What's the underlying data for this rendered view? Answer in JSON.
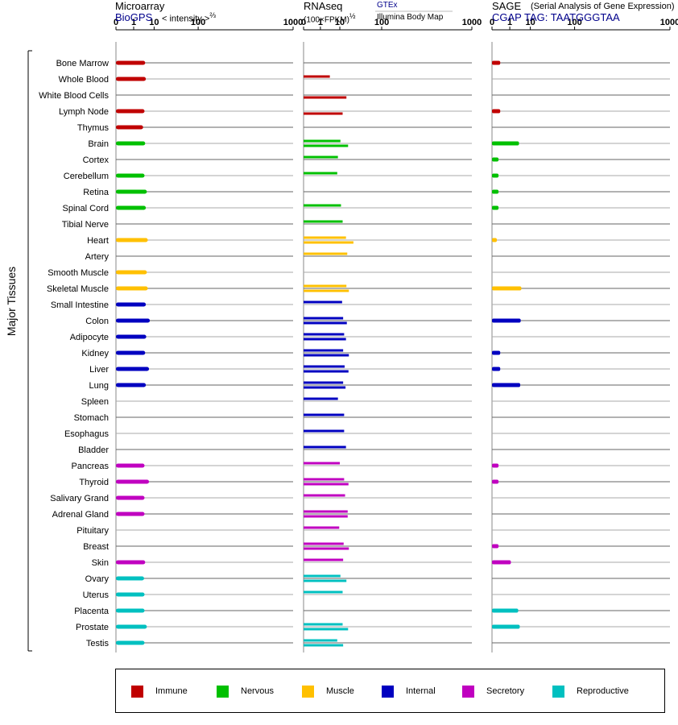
{
  "headers": {
    "microarray": {
      "title": "Microarray",
      "source": "BioGPS",
      "unit": "< intensity >",
      "unit_exp": "⅔"
    },
    "rnaseq": {
      "title": "RNAseq",
      "unit": "(100×FPKM)",
      "unit_exp": "½",
      "source_top": "GTEx",
      "source_bottom": "Illumina Body Map"
    },
    "sage": {
      "title": "SAGE",
      "subtitle": "(Serial Analysis of Gene Expression)",
      "tag": "CGAP TAG: TAATGGGTAA"
    }
  },
  "y_group_label": "Major Tissues",
  "legend": [
    {
      "label": "Immune",
      "color": "#c00000"
    },
    {
      "label": "Nervous",
      "color": "#00c000"
    },
    {
      "label": "Muscle",
      "color": "#ffc000"
    },
    {
      "label": "Internal",
      "color": "#0000c0"
    },
    {
      "label": "Secretory",
      "color": "#c000c0"
    },
    {
      "label": "Reproductive",
      "color": "#00c0c0"
    }
  ],
  "chart_data": {
    "type": "bar",
    "x_scale": "power",
    "x_ticks": [
      "0",
      "1",
      "10",
      "100",
      "1000"
    ],
    "xlim": [
      0,
      1000
    ],
    "categories": [
      "Bone Marrow",
      "Whole Blood",
      "White Blood Cells",
      "Lymph Node",
      "Thymus",
      "Brain",
      "Cortex",
      "Cerebellum",
      "Retina",
      "Spinal Cord",
      "Tibial Nerve",
      "Heart",
      "Artery",
      "Smooth Muscle",
      "Skeletal Muscle",
      "Small Intestine",
      "Colon",
      "Adipocyte",
      "Kidney",
      "Liver",
      "Lung",
      "Spleen",
      "Stomach",
      "Esophagus",
      "Bladder",
      "Pancreas",
      "Thyroid",
      "Salivary Grand",
      "Adrenal Gland",
      "Pituitary",
      "Breast",
      "Skin",
      "Ovary",
      "Uterus",
      "Placenta",
      "Prostate",
      "Testis"
    ],
    "groups": [
      "Immune",
      "Immune",
      "Immune",
      "Immune",
      "Immune",
      "Nervous",
      "Nervous",
      "Nervous",
      "Nervous",
      "Nervous",
      "Nervous",
      "Muscle",
      "Muscle",
      "Muscle",
      "Muscle",
      "Internal",
      "Internal",
      "Internal",
      "Internal",
      "Internal",
      "Internal",
      "Internal",
      "Internal",
      "Internal",
      "Internal",
      "Secretory",
      "Secretory",
      "Secretory",
      "Secretory",
      "Secretory",
      "Secretory",
      "Secretory",
      "Reproductive",
      "Reproductive",
      "Reproductive",
      "Reproductive",
      "Reproductive"
    ],
    "series": [
      {
        "name": "Microarray",
        "values": [
          4.5,
          4.8,
          null,
          4.2,
          3.6,
          4.5,
          null,
          4.2,
          5.3,
          4.8,
          null,
          5.8,
          null,
          5.3,
          5.8,
          4.8,
          7.0,
          5.0,
          4.5,
          6.5,
          4.8,
          null,
          null,
          null,
          null,
          4.2,
          6.5,
          4.2,
          4.2,
          null,
          null,
          4.5,
          4.0,
          4.2,
          4.2,
          5.3,
          4.2
        ]
      },
      {
        "name": "RNAseq GTEx",
        "values": [
          null,
          3.8,
          null,
          null,
          null,
          10.5,
          null,
          null,
          null,
          null,
          null,
          null,
          null,
          null,
          16.5,
          null,
          null,
          null,
          null,
          null,
          null,
          null,
          null,
          null,
          null,
          null,
          null,
          null,
          null,
          null,
          null,
          null,
          null,
          null,
          null,
          null,
          null
        ]
      },
      {
        "name": "RNAseq Illumina Body Map",
        "values": [
          null,
          null,
          null,
          null,
          null,
          null,
          null,
          null,
          null,
          null,
          null,
          null,
          null,
          null,
          null,
          null,
          null,
          null,
          null,
          null,
          null,
          null,
          null,
          null,
          null,
          null,
          null,
          null,
          null,
          null,
          null,
          null,
          null,
          null,
          null,
          null,
          null
        ]
      },
      {
        "name": "SAGE",
        "values": [
          0.1,
          null,
          null,
          0.1,
          null,
          3.5,
          0.05,
          0.05,
          0.05,
          0.05,
          null,
          0.02,
          null,
          null,
          4.5,
          null,
          4.2,
          null,
          0.1,
          0.1,
          4.0,
          null,
          null,
          null,
          null,
          0.05,
          0.05,
          null,
          null,
          null,
          0.05,
          1.2,
          null,
          null,
          3.2,
          3.8,
          null
        ]
      }
    ],
    "rnaseq_pairs": [
      [
        null,
        null
      ],
      [
        3.8,
        null
      ],
      [
        null,
        16.5
      ],
      [
        null,
        12.5
      ],
      [
        null,
        null
      ],
      [
        10.5,
        18.5
      ],
      [
        8.5,
        null
      ],
      [
        8.0,
        null
      ],
      [
        null,
        null
      ],
      [
        11.0,
        null
      ],
      [
        12.5,
        null
      ],
      [
        16.0,
        26.0
      ],
      [
        17.5,
        null
      ],
      [
        null,
        null
      ],
      [
        16.5,
        19.5
      ],
      [
        12.0,
        null
      ],
      [
        13.0,
        17.0
      ],
      [
        14.0,
        16.0
      ],
      [
        13.0,
        19.5
      ],
      [
        14.5,
        19.0
      ],
      [
        13.0,
        15.5
      ],
      [
        8.5,
        null
      ],
      [
        14.0,
        null
      ],
      [
        14.0,
        null
      ],
      [
        16.0,
        null
      ],
      [
        10.0,
        null
      ],
      [
        14.0,
        19.0
      ],
      [
        15.0,
        null
      ],
      [
        18.0,
        18.0
      ],
      [
        9.5,
        null
      ],
      [
        13.5,
        19.5
      ],
      [
        13.0,
        null
      ],
      [
        10.5,
        16.5
      ],
      [
        12.5,
        null
      ],
      [
        null,
        null
      ],
      [
        12.5,
        18.5
      ],
      [
        8.0,
        13.0
      ]
    ]
  }
}
